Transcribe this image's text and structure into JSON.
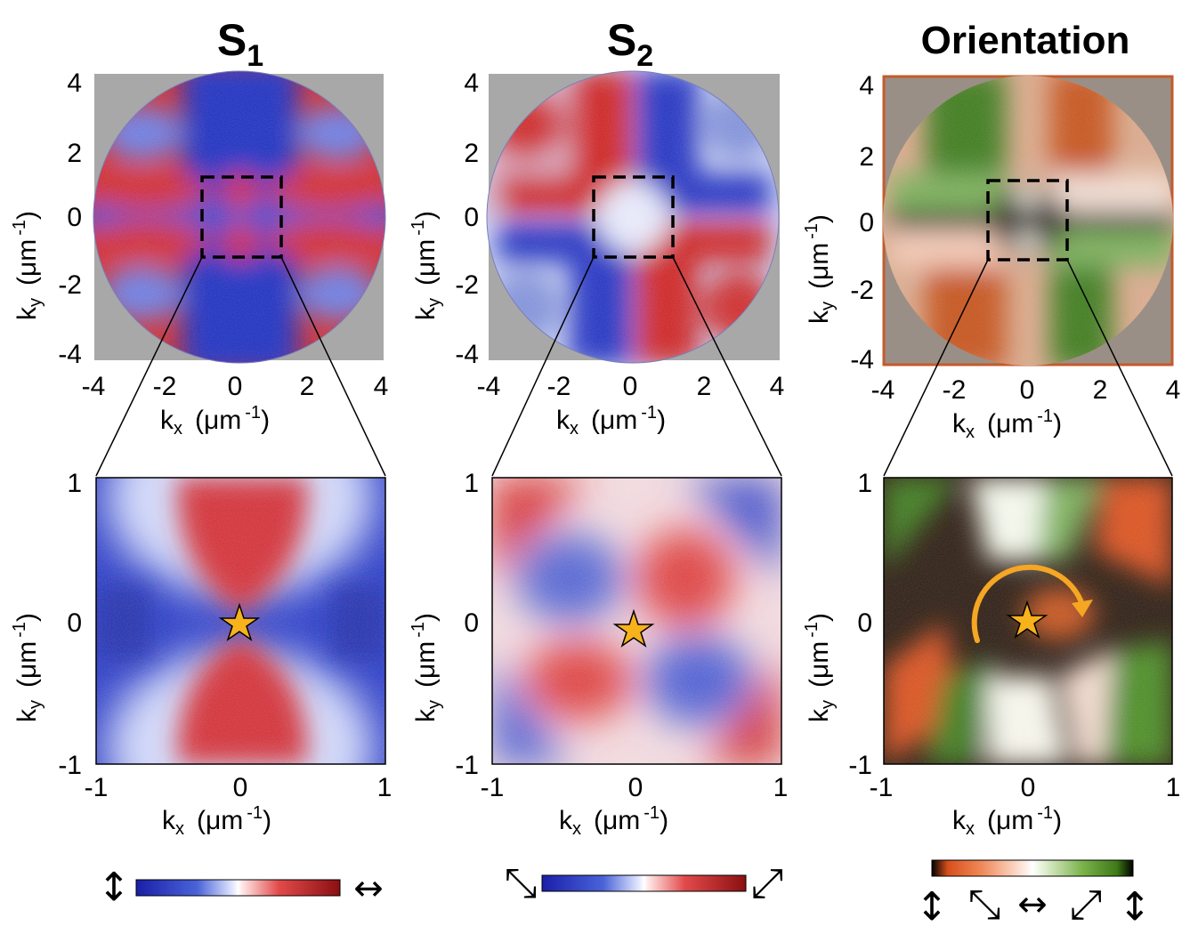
{
  "figure": {
    "panels": [
      {
        "id": "s1",
        "title_main": "S",
        "title_sub": "1",
        "top_xticks": [
          "-4",
          "-2",
          "0",
          "2",
          "4"
        ],
        "top_yticks": [
          "4",
          "2",
          "0",
          "-2",
          "-4"
        ],
        "bottom_xticks": [
          "-1",
          "0",
          "1"
        ],
        "bottom_yticks": [
          "1",
          "0",
          "-1"
        ],
        "colorbar_left_symbol": "↕",
        "colorbar_right_symbol": "↔"
      },
      {
        "id": "s2",
        "title_main": "S",
        "title_sub": "2",
        "top_xticks": [
          "-4",
          "-2",
          "0",
          "2",
          "4"
        ],
        "top_yticks": [
          "4",
          "2",
          "0",
          "-2",
          "-4"
        ],
        "bottom_xticks": [
          "-1",
          "0",
          "1"
        ],
        "bottom_yticks": [
          "1",
          "0",
          "-1"
        ],
        "colorbar_left_symbol": "⤡",
        "colorbar_right_symbol": "⤢"
      },
      {
        "id": "orientation",
        "title_main": "Orientation",
        "title_sub": "",
        "top_xticks": [
          "-4",
          "-2",
          "0",
          "2",
          "4"
        ],
        "top_yticks": [
          "4",
          "2",
          "0",
          "-2",
          "-4"
        ],
        "bottom_xticks": [
          "-1",
          "0",
          "1"
        ],
        "bottom_yticks": [
          "1",
          "0",
          "-1"
        ],
        "colorbar_symbols": [
          "↕",
          "⤡",
          "↔",
          "⤢",
          "↕"
        ]
      }
    ],
    "axis_labels": {
      "x_base": "k",
      "x_sub": "x",
      "y_base": "k",
      "y_sub": "y",
      "unit": "(μm",
      "unit_exp": "-1",
      "unit_close": ")"
    },
    "colors": {
      "blue": "#1f2fc8",
      "red": "#cc2026",
      "orange": "#e05a24",
      "green": "#4a8a22",
      "black": "#000000",
      "star": "#f7b21c",
      "arrow": "#f5a623"
    }
  }
}
